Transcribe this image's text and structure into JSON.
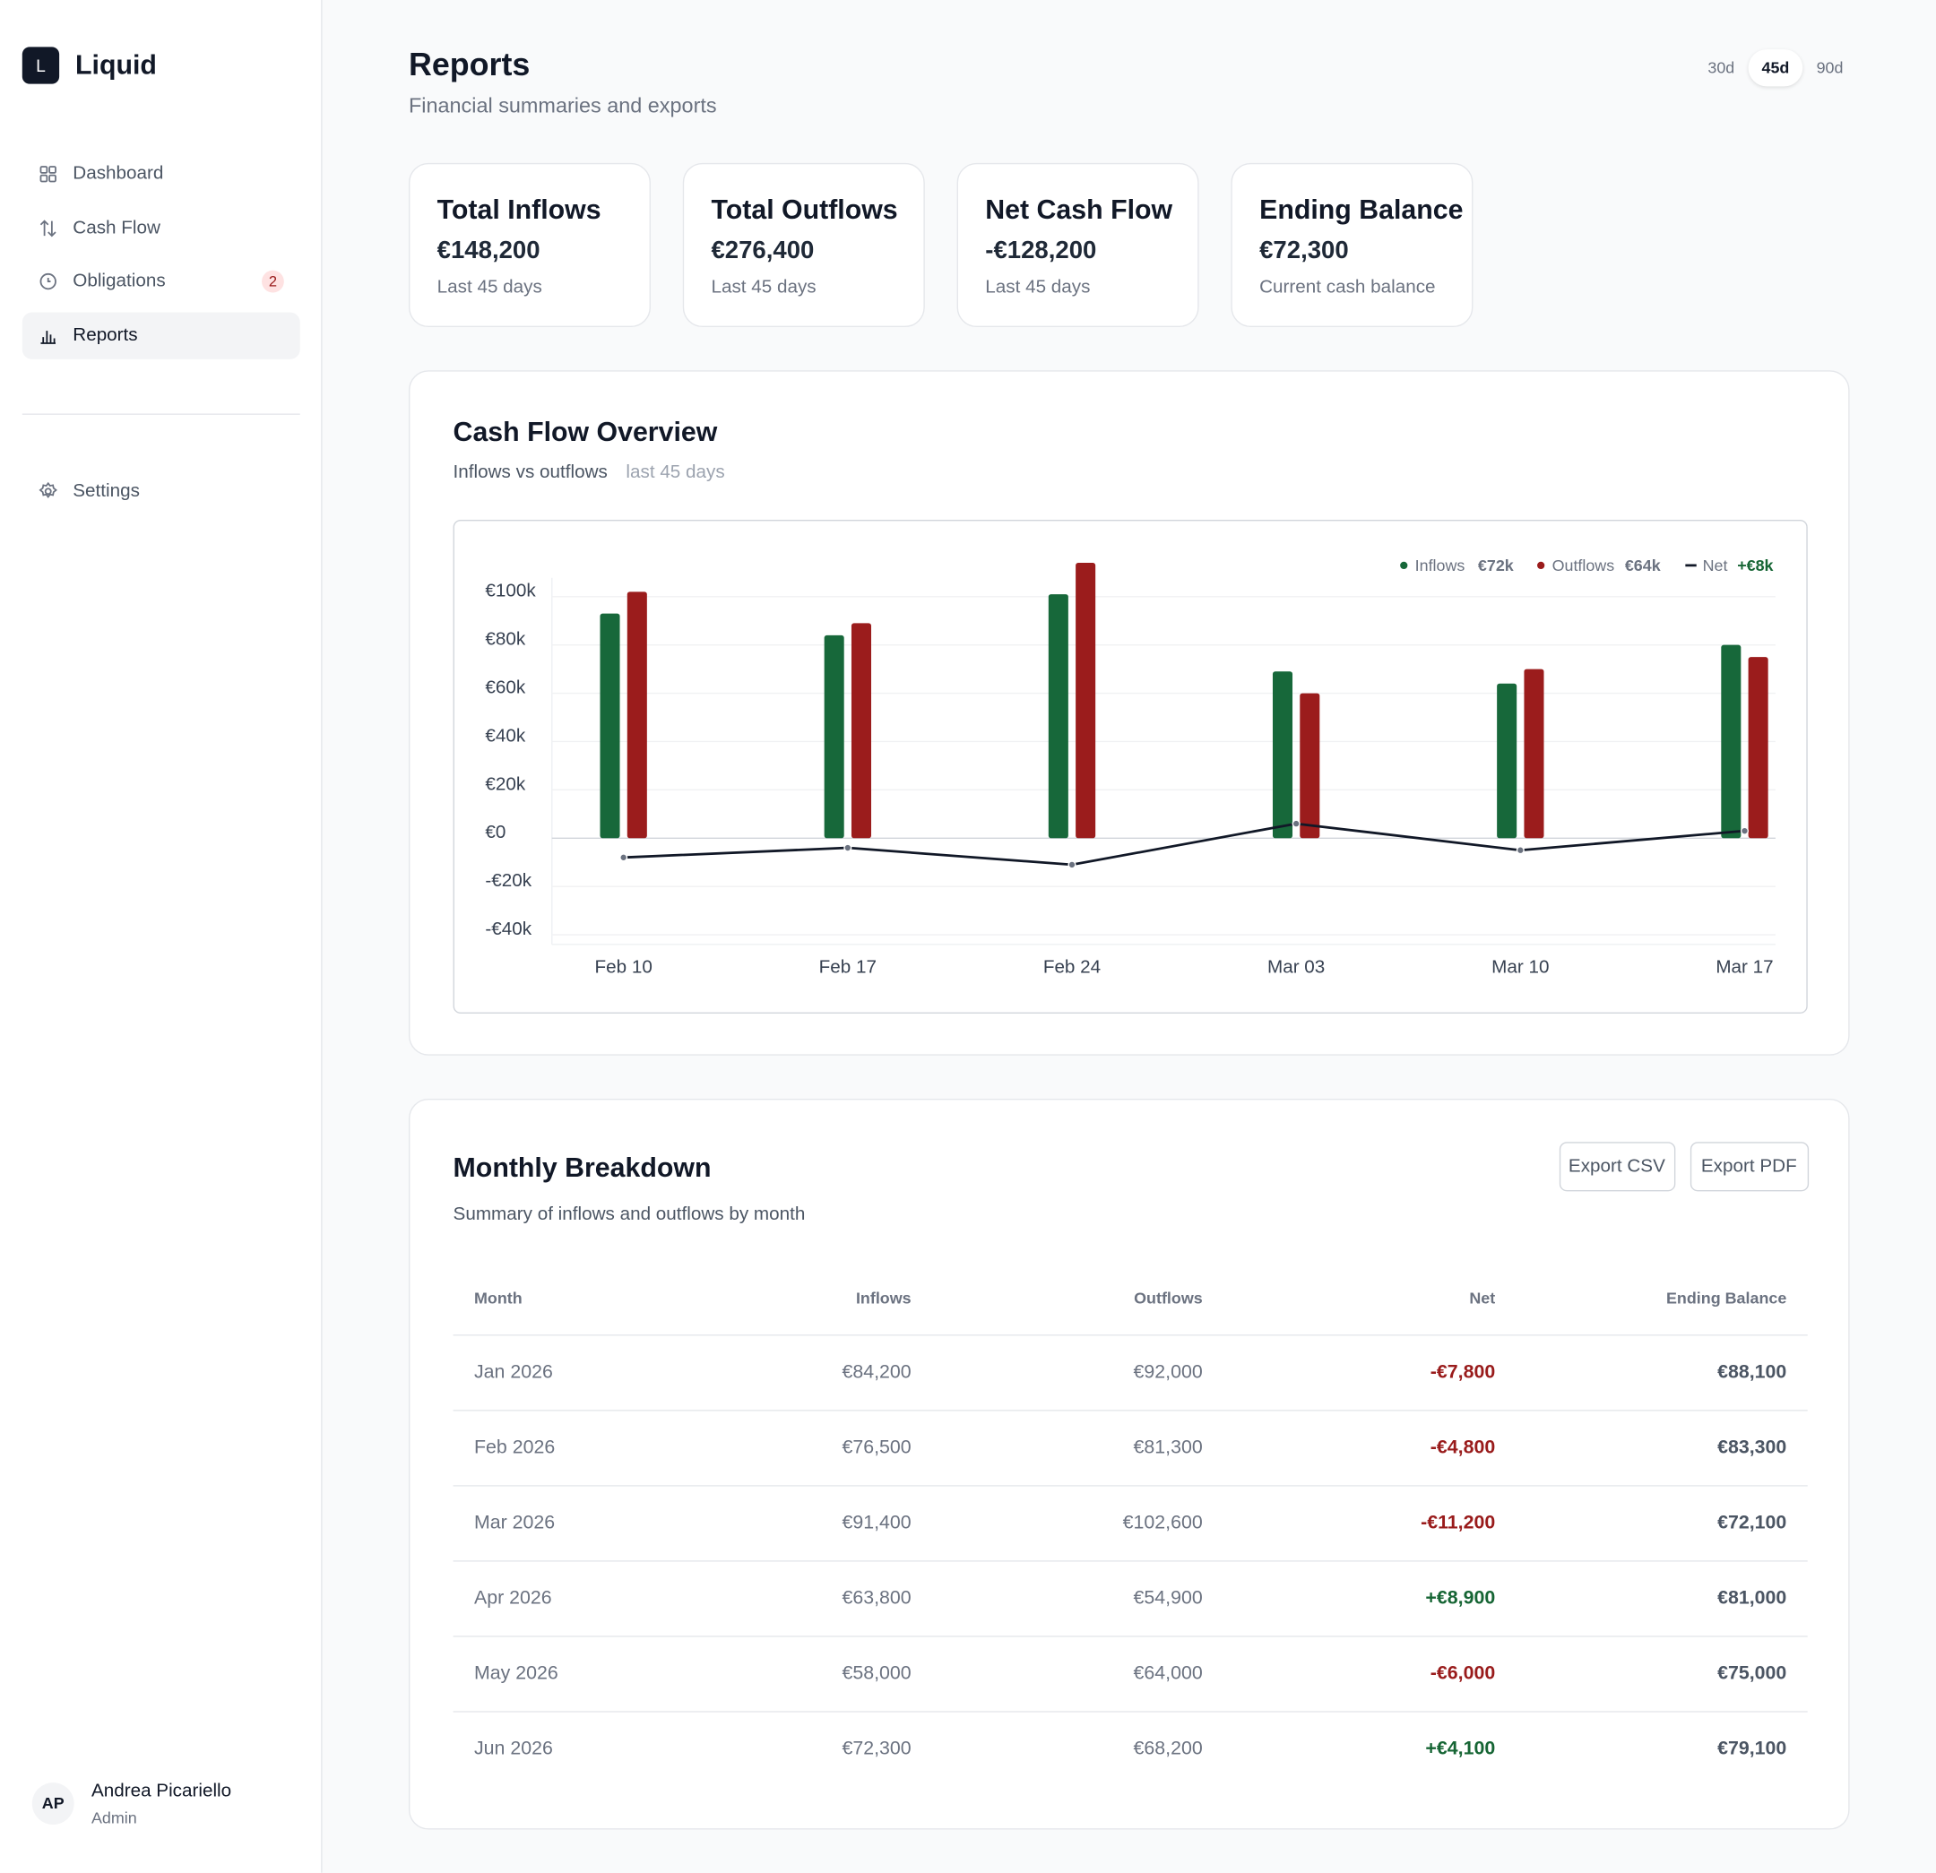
{
  "sidebar": {
    "logo": "L",
    "brand": "Liquid",
    "nav": [
      {
        "label": "Dashboard"
      },
      {
        "label": "Cash Flow"
      },
      {
        "label": "Obligations",
        "badge": "2"
      },
      {
        "label": "Reports"
      }
    ],
    "settings": "Settings",
    "user": {
      "initials": "AP",
      "name": "Andrea Picariello",
      "role": "Admin"
    }
  },
  "header": {
    "title": "Reports",
    "subtitle": "Financial summaries and exports",
    "ranges": [
      "30d",
      "45d",
      "90d"
    ]
  },
  "cards": [
    {
      "title": "Total Inflows",
      "value": "€148,200",
      "caption": "Last 45 days"
    },
    {
      "title": "Total Outflows",
      "value": "€276,400",
      "caption": "Last 45 days"
    },
    {
      "title": "Net Cash Flow",
      "value": "-€128,200",
      "caption": "Last 45 days"
    },
    {
      "title": "Ending Balance",
      "value": "€72,300",
      "caption": "Current cash balance"
    }
  ],
  "chart_data": {
    "type": "bar",
    "title": "Cash Flow Overview",
    "subtitle": "Inflows vs outflows",
    "subtitle_note": "last 45 days",
    "categories": [
      "Feb 10",
      "Feb 17",
      "Feb 24",
      "Mar 03",
      "Mar 10",
      "Mar 17"
    ],
    "series": [
      {
        "name": "Inflows",
        "color": "#17683a",
        "total_label": "€72k",
        "values": [
          93000,
          84000,
          101000,
          69000,
          64000,
          80000
        ]
      },
      {
        "name": "Outflows",
        "color": "#9b1c1c",
        "total_label": "€64k",
        "values": [
          102000,
          89000,
          114000,
          60000,
          70000,
          75000
        ]
      },
      {
        "name": "Net",
        "type": "line",
        "color": "#111827",
        "total_label": "+€8k",
        "values": [
          -8000,
          -4000,
          -11000,
          6000,
          -5000,
          3000
        ]
      }
    ],
    "ylim": [
      -44000,
      116000
    ],
    "yticks": [
      {
        "value": -40000,
        "label": "-€40k"
      },
      {
        "value": -20000,
        "label": "-€20k"
      },
      {
        "value": 0,
        "label": "€0"
      },
      {
        "value": 20000,
        "label": "€20k"
      },
      {
        "value": 40000,
        "label": "€40k"
      },
      {
        "value": 60000,
        "label": "€60k"
      },
      {
        "value": 80000,
        "label": "€80k"
      },
      {
        "value": 100000,
        "label": "€100k"
      }
    ],
    "grid": true
  },
  "table": {
    "title": "Monthly Breakdown",
    "subtitle": "Summary of inflows and outflows by month",
    "buttons": [
      "Export CSV",
      "Export PDF"
    ],
    "columns": [
      "Month",
      "Inflows",
      "Outflows",
      "Net",
      "Ending Balance"
    ],
    "rows": [
      [
        "Jan 2026",
        "€84,200",
        "€92,000",
        "-€7,800",
        "€88,100"
      ],
      [
        "Feb 2026",
        "€76,500",
        "€81,300",
        "-€4,800",
        "€83,300"
      ],
      [
        "Mar 2026",
        "€91,400",
        "€102,600",
        "-€11,200",
        "€72,100"
      ],
      [
        "Apr 2026",
        "€63,800",
        "€54,900",
        "+€8,900",
        "€81,000"
      ],
      [
        "May 2026",
        "€58,000",
        "€64,000",
        "-€6,000",
        "€75,000"
      ],
      [
        "Jun 2026",
        "€72,300",
        "€68,200",
        "+€4,100",
        "€79,100"
      ]
    ]
  }
}
